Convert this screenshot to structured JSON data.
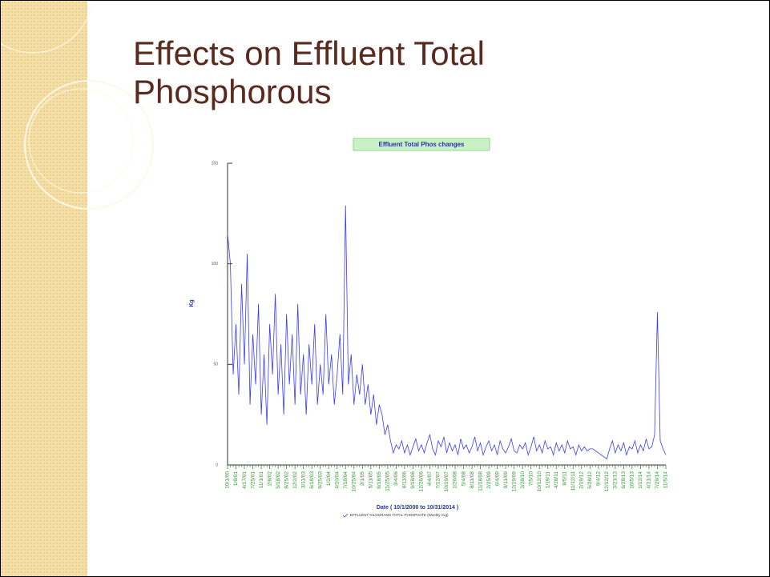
{
  "slide_title": "Effects on Effluent Total Phosphorous",
  "chart_data": {
    "type": "line",
    "title": "Effluent Total Phos changes",
    "y_label": "Kg",
    "x_label": "Date ( 10/1/2000 to 10/31/2014 )",
    "ylim": [
      0,
      150
    ],
    "yticks": [
      0,
      50,
      100,
      150
    ],
    "categories": [
      "10/1/00",
      null,
      null,
      "1/8/01",
      null,
      null,
      "4/17/01",
      null,
      null,
      "7/25/01",
      null,
      null,
      "11/1/01",
      null,
      null,
      "2/8/02",
      null,
      null,
      "5/18/02",
      null,
      null,
      "8/25/02",
      null,
      null,
      "12/2/02",
      null,
      null,
      "3/11/03",
      null,
      null,
      "6/18/03",
      null,
      null,
      "9/25/03",
      null,
      null,
      "1/2/04",
      null,
      null,
      "4/10/04",
      null,
      null,
      "7/18/04",
      null,
      null,
      "10/25/04",
      null,
      null,
      "2/1/05",
      null,
      null,
      "5/11/05",
      null,
      null,
      "8/18/05",
      null,
      null,
      "11/25/05",
      null,
      null,
      "3/4/06",
      null,
      null,
      "6/11/06",
      null,
      null,
      "9/18/06",
      null,
      null,
      "12/26/06",
      null,
      null,
      "4/4/07",
      null,
      null,
      "7/12/07",
      null,
      null,
      "10/19/07",
      null,
      null,
      "1/26/08",
      null,
      null,
      "5/4/08",
      null,
      null,
      "8/11/08",
      null,
      null,
      "11/18/08",
      null,
      null,
      "2/25/09",
      null,
      null,
      "6/4/09",
      null,
      null,
      "9/11/09",
      null,
      null,
      "12/19/09",
      null,
      null,
      "3/28/10",
      null,
      null,
      "7/5/10",
      null,
      null,
      "10/12/10",
      null,
      null,
      "1/19/11",
      null,
      null,
      "4/28/11",
      null,
      null,
      "8/5/11",
      null,
      null,
      "11/12/11",
      null,
      null,
      "2/19/12",
      null,
      null,
      "5/28/12",
      null,
      null,
      "9/4/12",
      null,
      null,
      "12/12/12",
      null,
      null,
      "3/21/13",
      null,
      null,
      "6/28/13",
      null,
      null,
      "10/5/13",
      null,
      null,
      "1/12/14",
      null,
      null,
      "4/21/14",
      null,
      null,
      "7/29/14",
      null,
      null,
      "11/5/14"
    ],
    "series": [
      {
        "name": "EFFLUENT KILOGRAMS TOTAL PHOSPHATE (Weekly Avg)",
        "color": "#3a3aff",
        "values": [
          115,
          100,
          45,
          70,
          35,
          90,
          50,
          105,
          30,
          65,
          40,
          80,
          25,
          55,
          20,
          70,
          45,
          85,
          35,
          60,
          25,
          75,
          40,
          65,
          30,
          80,
          35,
          55,
          25,
          60,
          40,
          70,
          30,
          50,
          35,
          75,
          40,
          55,
          30,
          45,
          65,
          35,
          129,
          40,
          55,
          30,
          45,
          35,
          50,
          30,
          40,
          25,
          35,
          20,
          30,
          25,
          15,
          20,
          12,
          6,
          10,
          8,
          12,
          6,
          10,
          5,
          9,
          13,
          7,
          10,
          6,
          11,
          15,
          8,
          5,
          12,
          9,
          14,
          6,
          11,
          7,
          10,
          5,
          13,
          8,
          10,
          6,
          9,
          14,
          7,
          11,
          5,
          9,
          12,
          7,
          10,
          5,
          12,
          8,
          6,
          9,
          13,
          7,
          6,
          10,
          8,
          11,
          5,
          9,
          14,
          7,
          10,
          6,
          12,
          8,
          9,
          5,
          11,
          7,
          10,
          6,
          12,
          8,
          9,
          5,
          10,
          7,
          9,
          7,
          8,
          8,
          7,
          6,
          5,
          4,
          3,
          8,
          12,
          6,
          10,
          7,
          11,
          5,
          9,
          8,
          12,
          6,
          10,
          7,
          13,
          8,
          9,
          15,
          76,
          12,
          8,
          5
        ]
      }
    ]
  }
}
